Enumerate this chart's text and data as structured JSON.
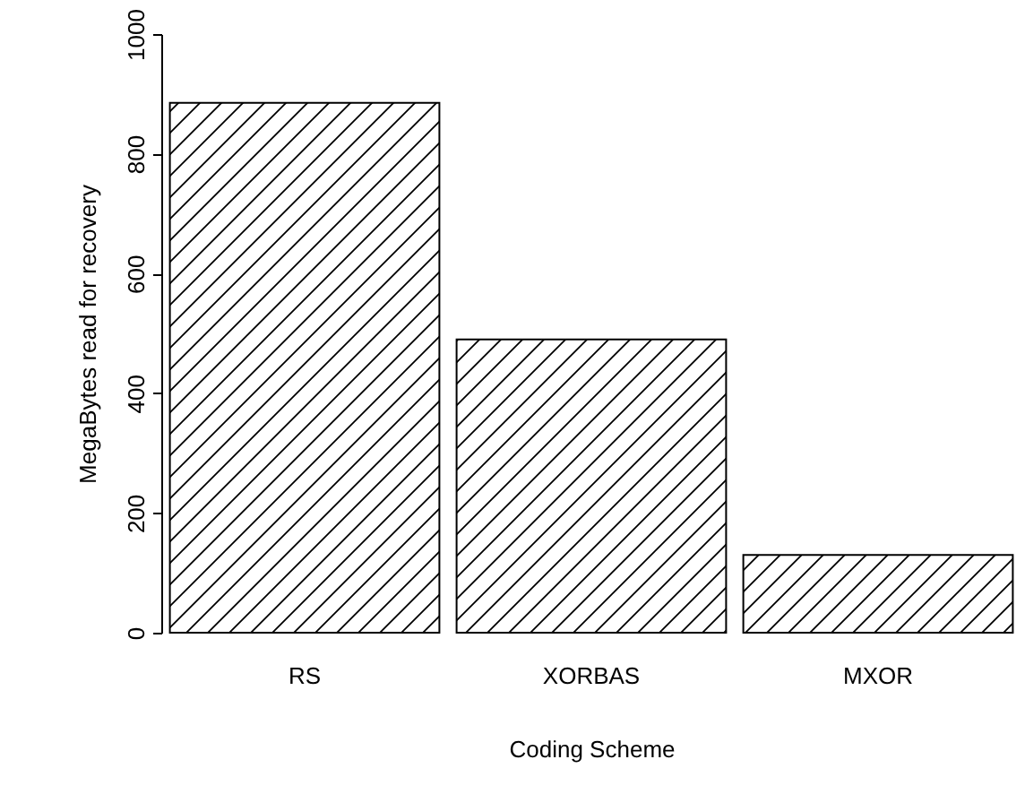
{
  "chart_data": {
    "type": "bar",
    "xlabel": "Coding Scheme",
    "ylabel": "MegaBytes read for recovery",
    "categories": [
      "RS",
      "XORBAS",
      "MXOR"
    ],
    "values": [
      885,
      490,
      130
    ],
    "color": "#000000",
    "ylim": [
      0,
      1000
    ],
    "yticks": [
      0,
      200,
      400,
      600,
      800,
      1000
    ],
    "grid": false
  }
}
